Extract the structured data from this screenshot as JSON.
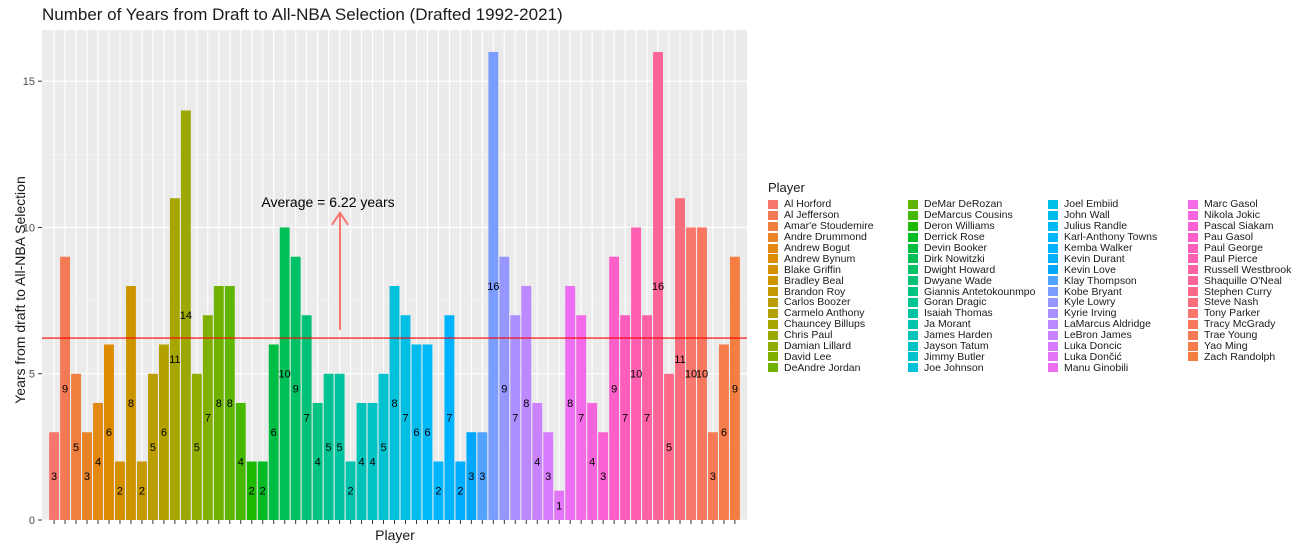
{
  "chart_data": {
    "type": "bar",
    "title": "Number of Years from Draft to All-NBA Selection (Drafted 1992-2021)",
    "xlabel": "Player",
    "ylabel": "Years from draft to All-NBA Selection",
    "ylim": [
      0,
      16.75
    ],
    "yticks": [
      0,
      5,
      10,
      15
    ],
    "grid": true,
    "legend_title": "Player",
    "legend_position": "right",
    "average_label": "Average = 6.22 years",
    "average_value": 6.22,
    "average_line_color": "#F8766D",
    "categories": [
      "Al Horford",
      "Al Jefferson",
      "Amar'e Stoudemire",
      "Andre Drummond",
      "Andrew Bogut",
      "Andrew Bynum",
      "Blake Griffin",
      "Bradley Beal",
      "Brandon Roy",
      "Carlos Boozer",
      "Carmelo Anthony",
      "Chauncey Billups",
      "Chris Paul",
      "Damian Lillard",
      "David Lee",
      "DeAndre Jordan",
      "DeMar DeRozan",
      "DeMarcus Cousins",
      "Deron Williams",
      "Derrick Rose",
      "Devin Booker",
      "Dirk Nowitzki",
      "Dwight Howard",
      "Dwyane Wade",
      "Giannis Antetokounmpo",
      "Goran Dragic",
      "Isaiah Thomas",
      "Ja Morant",
      "James Harden",
      "Jayson Tatum",
      "Jimmy Butler",
      "Joe Johnson",
      "Joel Embiid",
      "John Wall",
      "Julius Randle",
      "Karl-Anthony Towns",
      "Kemba Walker",
      "Kevin Durant",
      "Kevin Love",
      "Klay Thompson",
      "Kobe Bryant",
      "Kyle Lowry",
      "Kyrie Irving",
      "LaMarcus Aldridge",
      "LeBron James",
      "Luka Doncic",
      "Luka Dončić",
      "Manu Ginobili",
      "Marc Gasol",
      "Nikola Jokic",
      "Pascal Siakam",
      "Pau Gasol",
      "Paul George",
      "Paul Pierce",
      "Russell Westbrook",
      "Shaquille O'Neal",
      "Stephen Curry",
      "Steve Nash",
      "Tony Parker",
      "Tracy McGrady",
      "Trae Young",
      "Yao Ming",
      "Zach Randolph"
    ],
    "values": [
      3,
      9,
      5,
      3,
      4,
      6,
      2,
      8,
      2,
      5,
      6,
      11,
      14,
      5,
      7,
      8,
      8,
      4,
      2,
      2,
      6,
      10,
      9,
      7,
      4,
      5,
      5,
      2,
      4,
      4,
      5,
      8,
      7,
      6,
      6,
      2,
      7,
      2,
      3,
      3,
      16,
      9,
      7,
      8,
      4,
      3,
      1,
      8,
      7,
      4,
      3,
      9,
      7,
      10,
      7,
      16,
      5,
      11,
      10,
      10,
      3,
      6,
      9
    ],
    "colors": [
      "#F8766D",
      "#F47A56",
      "#EF7F3F",
      "#E98328",
      "#E38811",
      "#DD8C00",
      "#D59000",
      "#CD9500",
      "#C59900",
      "#BC9D00",
      "#B2A100",
      "#A7A500",
      "#9BA800",
      "#8FAC00",
      "#81AF00",
      "#71B200",
      "#5FB500",
      "#47B800",
      "#1DBA00",
      "#00BC24",
      "#00BE41",
      "#00C055",
      "#00C166",
      "#00C276",
      "#00C384",
      "#00C392",
      "#00C49F",
      "#00C4AC",
      "#00C4B8",
      "#00C3C4",
      "#00C2CF",
      "#00C1DA",
      "#00BFE4",
      "#00BDEE",
      "#00BAF7",
      "#00B7FF",
      "#00B3FF",
      "#00AEFF",
      "#00A9FF",
      "#51A3FF",
      "#7A9DFF",
      "#9597FF",
      "#AA90FF",
      "#BC89FF",
      "#CB82FF",
      "#D77BFF",
      "#E275F8",
      "#EB6FF0",
      "#F369E7",
      "#F864DD",
      "#FC61D3",
      "#FE5FC8",
      "#FF5EBD",
      "#FF5FB1",
      "#FF61A5",
      "#FF6498",
      "#FD688B",
      "#F96C7D",
      "#F8766D",
      "#F7785F",
      "#F67A55",
      "#F57C4B",
      "#F47E42"
    ]
  }
}
